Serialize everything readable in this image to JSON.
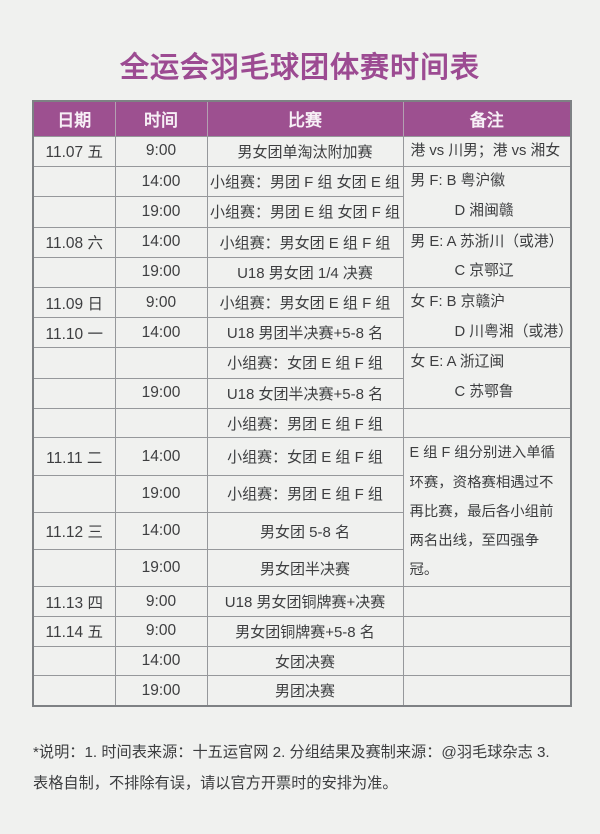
{
  "page": {
    "title": "全运会羽毛球团体赛时间表",
    "footnote": "*说明：1. 时间表来源：十五运官网  2. 分组结果及赛制来源：@羽毛球杂志  3. 表格自制，不排除有误，请以官方开票时的安排为准。"
  },
  "colors": {
    "page_bg": "#f0f1ef",
    "header_bg": "#9d5090",
    "header_text": "#f7eff6",
    "title_color": "#9c4b92",
    "text_color": "#3d3e40",
    "border_color": "#96989b"
  },
  "table": {
    "headers": [
      "日期",
      "时间",
      "比赛",
      "备注"
    ],
    "rows": [
      {
        "date": "11.07 五",
        "time": "9:00",
        "match": "男女团单淘汰附加赛",
        "note": {
          "rowspan": 1,
          "lines": [
            "港 vs 川男；港 vs 湘女"
          ]
        }
      },
      {
        "date": "",
        "time": "14:00",
        "match": "小组赛：男团 F 组 女团 E 组",
        "note": {
          "rowspan": 2,
          "lines": [
            "男 F: B 粤沪徽",
            "D 湘闽赣"
          ]
        }
      },
      {
        "date": "",
        "time": "19:00",
        "match": "小组赛：男团 E 组 女团 F 组"
      },
      {
        "date": "11.08 六",
        "time": "14:00",
        "match": "小组赛：男女团 E 组 F 组",
        "note": {
          "rowspan": 2,
          "lines": [
            "男 E: A 苏浙川（或港）",
            "C 京鄂辽"
          ]
        }
      },
      {
        "date": "",
        "time": "19:00",
        "match": "U18 男女团 1/4 决赛"
      },
      {
        "date": "11.09 日",
        "time": "9:00",
        "match": "小组赛：男女团 E 组 F 组",
        "note": {
          "rowspan": 2,
          "lines": [
            "女 F: B 京赣沪",
            "D 川粤湘（或港）"
          ]
        }
      },
      {
        "date": "11.10 一",
        "time": "14:00",
        "match": "U18 男团半决赛+5-8 名"
      },
      {
        "date": "",
        "time": "",
        "match": "小组赛：女团 E 组 F 组",
        "note": {
          "rowspan": 2,
          "lines": [
            "女 E: A 浙辽闽",
            "C 苏鄂鲁"
          ]
        }
      },
      {
        "date": "",
        "time": "19:00",
        "match": "U18 女团半决赛+5-8 名"
      },
      {
        "date": "",
        "time": "",
        "match": "小组赛：男团 E 组 F 组",
        "note": {
          "rowspan": 1,
          "lines": [
            ""
          ]
        }
      },
      {
        "date": "11.11 二",
        "time": "14:00",
        "match": "小组赛：女团 E 组 F 组",
        "note": {
          "rowspan": 4,
          "wrap": true,
          "lines": [
            "E 组 F 组分别进入单循环赛，资格赛相遇过不再比赛，最后各小组前两名出线，至四强争冠。"
          ]
        }
      },
      {
        "date": "",
        "time": "19:00",
        "match": "小组赛：男团 E 组 F 组"
      },
      {
        "date": "11.12 三",
        "time": "14:00",
        "match": "男女团 5-8 名"
      },
      {
        "date": "",
        "time": "19:00",
        "match": "男女团半决赛"
      },
      {
        "date": "11.13 四",
        "time": "9:00",
        "match": "U18 男女团铜牌赛+决赛",
        "note": {
          "rowspan": 1,
          "lines": [
            ""
          ]
        }
      },
      {
        "date": "11.14 五",
        "time": "9:00",
        "match": "男女团铜牌赛+5-8 名",
        "note": {
          "rowspan": 1,
          "lines": [
            ""
          ]
        }
      },
      {
        "date": "",
        "time": "14:00",
        "match": "女团决赛",
        "note": {
          "rowspan": 1,
          "lines": [
            ""
          ]
        }
      },
      {
        "date": "",
        "time": "19:00",
        "match": "男团决赛",
        "note": {
          "rowspan": 1,
          "lines": [
            ""
          ]
        }
      }
    ]
  }
}
